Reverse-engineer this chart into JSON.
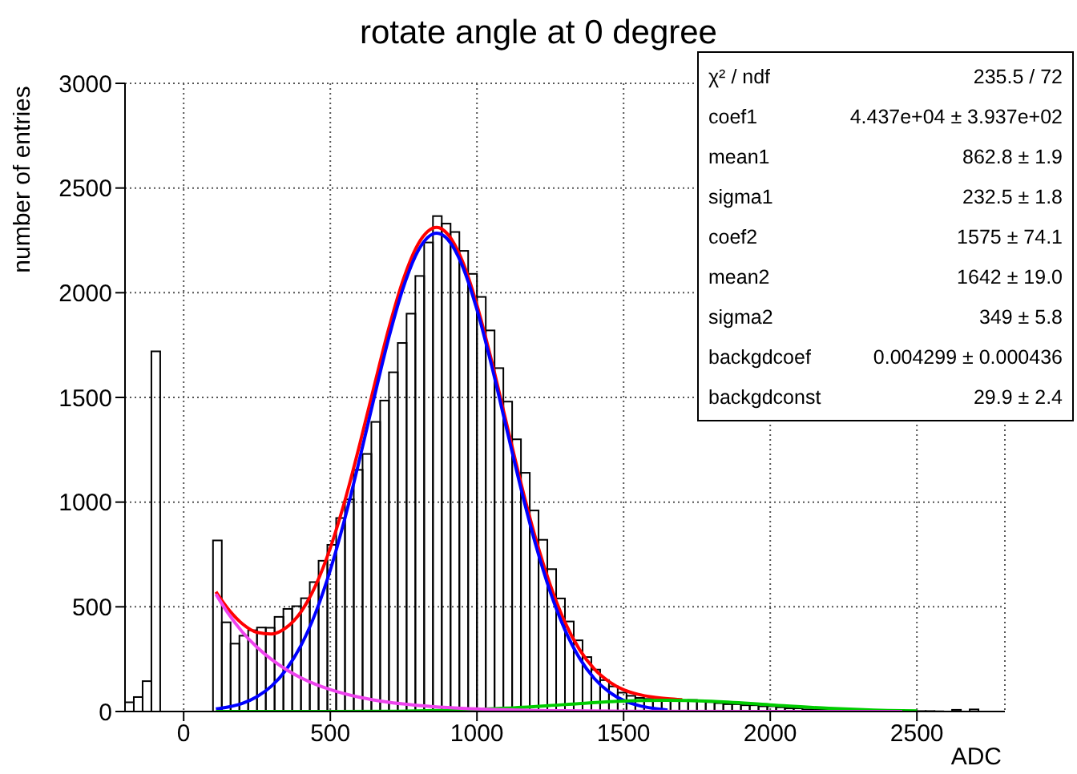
{
  "chart_data": {
    "type": "histogram",
    "title": "rotate angle at 0 degree",
    "xlabel": "ADC",
    "ylabel": "number of entries",
    "xlim": [
      -200,
      2800
    ],
    "xticks": [
      0,
      500,
      1000,
      1500,
      2000,
      2500
    ],
    "ylim": [
      0,
      3000
    ],
    "yticks": [
      0,
      500,
      1000,
      1500,
      2000,
      2500,
      3000
    ],
    "grid": true,
    "legend": false,
    "series": [
      {
        "color": "#000000",
        "bins": [
          -200,
          -170,
          -140,
          -110,
          -80,
          -50,
          -20,
          10,
          40,
          70,
          100,
          130,
          160,
          190,
          220,
          250,
          280,
          310,
          340,
          370,
          400,
          430,
          460,
          490,
          520,
          550,
          580,
          610,
          640,
          670,
          700,
          730,
          760,
          790,
          820,
          850,
          880,
          910,
          940,
          970,
          1000,
          1030,
          1060,
          1090,
          1120,
          1150,
          1180,
          1210,
          1240,
          1270,
          1300,
          1330,
          1360,
          1390,
          1420,
          1450,
          1480,
          1510,
          1540,
          1570,
          1600,
          1630,
          1660,
          1690,
          1720,
          1750,
          1780,
          1810,
          1840,
          1870,
          1900,
          1930,
          1960,
          1990,
          2020,
          2050,
          2080,
          2110,
          2140,
          2170,
          2200,
          2230,
          2260,
          2290,
          2320,
          2350,
          2380,
          2410,
          2440,
          2470,
          2500,
          2530,
          2560,
          2590,
          2620,
          2650,
          2680,
          2710,
          2740,
          2770,
          2800
        ],
        "values": [
          44,
          69,
          145,
          1720,
          null,
          null,
          null,
          null,
          null,
          null,
          817,
          426,
          324,
          362,
          388,
          401,
          400,
          452,
          490,
          503,
          541,
          618,
          720,
          796,
          924,
          1013,
          1154,
          1230,
          1383,
          1485,
          1620,
          1760,
          1900,
          2080,
          2240,
          2366,
          2330,
          2290,
          2200,
          2090,
          1980,
          1820,
          1640,
          1480,
          1300,
          1140,
          960,
          820,
          680,
          540,
          430,
          340,
          260,
          200,
          150,
          120,
          90,
          75,
          65,
          60,
          55,
          55,
          50,
          50,
          55,
          50,
          45,
          40,
          35,
          35,
          30,
          30,
          25,
          25,
          20,
          15,
          15,
          10,
          10,
          8,
          6,
          5,
          5,
          5,
          4,
          4,
          3,
          3,
          3,
          2,
          2,
          2,
          1,
          0,
          8,
          0,
          10,
          0,
          0,
          0
        ]
      },
      {
        "type": "line",
        "color": "#ff0000",
        "x": [
          110,
          150,
          200,
          250,
          300,
          350,
          400,
          450,
          500,
          550,
          600,
          650,
          700,
          750,
          800,
          863,
          900,
          950,
          1000,
          1050,
          1100,
          1150,
          1200,
          1250,
          1300,
          1350,
          1400,
          1450,
          1500,
          1550,
          1600,
          1650,
          1700
        ],
        "values": [
          572,
          493,
          419,
          378,
          370,
          401,
          476,
          602,
          781,
          1008,
          1274,
          1557,
          1833,
          2068,
          2234,
          2312,
          2280,
          2152,
          1941,
          1674,
          1381,
          1091,
          827,
          604,
          426,
          295,
          203,
          143,
          104,
          82,
          69,
          61,
          56
        ]
      },
      {
        "type": "line",
        "color": "#0000ff",
        "x": [
          110,
          150,
          200,
          250,
          300,
          350,
          400,
          450,
          500,
          550,
          600,
          650,
          700,
          750,
          800,
          863,
          900,
          950,
          1000,
          1050,
          1100,
          1150,
          1200,
          1250,
          1300,
          1350,
          1400,
          1450,
          1500,
          1550,
          1600,
          1650
        ],
        "values": [
          12,
          21,
          39,
          71,
          122,
          201,
          315,
          472,
          676,
          924,
          1206,
          1502,
          1788,
          2030,
          2202,
          2284,
          2255,
          2129,
          1919,
          1652,
          1357,
          1065,
          798,
          571,
          390,
          254,
          158,
          94,
          53,
          29,
          15,
          7
        ]
      },
      {
        "type": "line",
        "color": "#00cc00",
        "x": [
          110,
          300,
          500,
          700,
          900,
          1100,
          1300,
          1500,
          1642,
          1800,
          2000,
          2200,
          2400,
          2500
        ],
        "values": [
          0,
          0,
          0,
          1,
          6,
          16,
          33,
          50,
          54,
          49,
          32,
          15,
          5,
          3
        ]
      },
      {
        "type": "line",
        "color": "#ee44ee",
        "x": [
          110,
          150,
          200,
          250,
          300,
          350,
          400,
          450,
          500,
          600,
          700,
          800,
          900,
          1000,
          1200,
          1500,
          2000,
          2450
        ],
        "values": [
          560,
          472,
          380,
          307,
          248,
          200,
          161,
          130,
          105,
          68,
          44,
          29,
          19,
          12,
          5,
          1,
          0,
          0
        ]
      }
    ],
    "annotations": [
      "χ² / ndf",
      "235.5 / 72",
      "coef1",
      "4.437e+04 ± 3.937e+02",
      "mean1",
      "862.8 ± 1.9",
      "sigma1",
      "232.5 ± 1.8",
      "coef2",
      "1575 ± 74.1",
      "mean2",
      "1642 ± 19.0",
      "sigma2",
      "349 ± 5.8",
      "backgdcoef",
      "0.004299 ± 0.000436",
      "backgdconst",
      "29.9 ± 2.4"
    ]
  }
}
